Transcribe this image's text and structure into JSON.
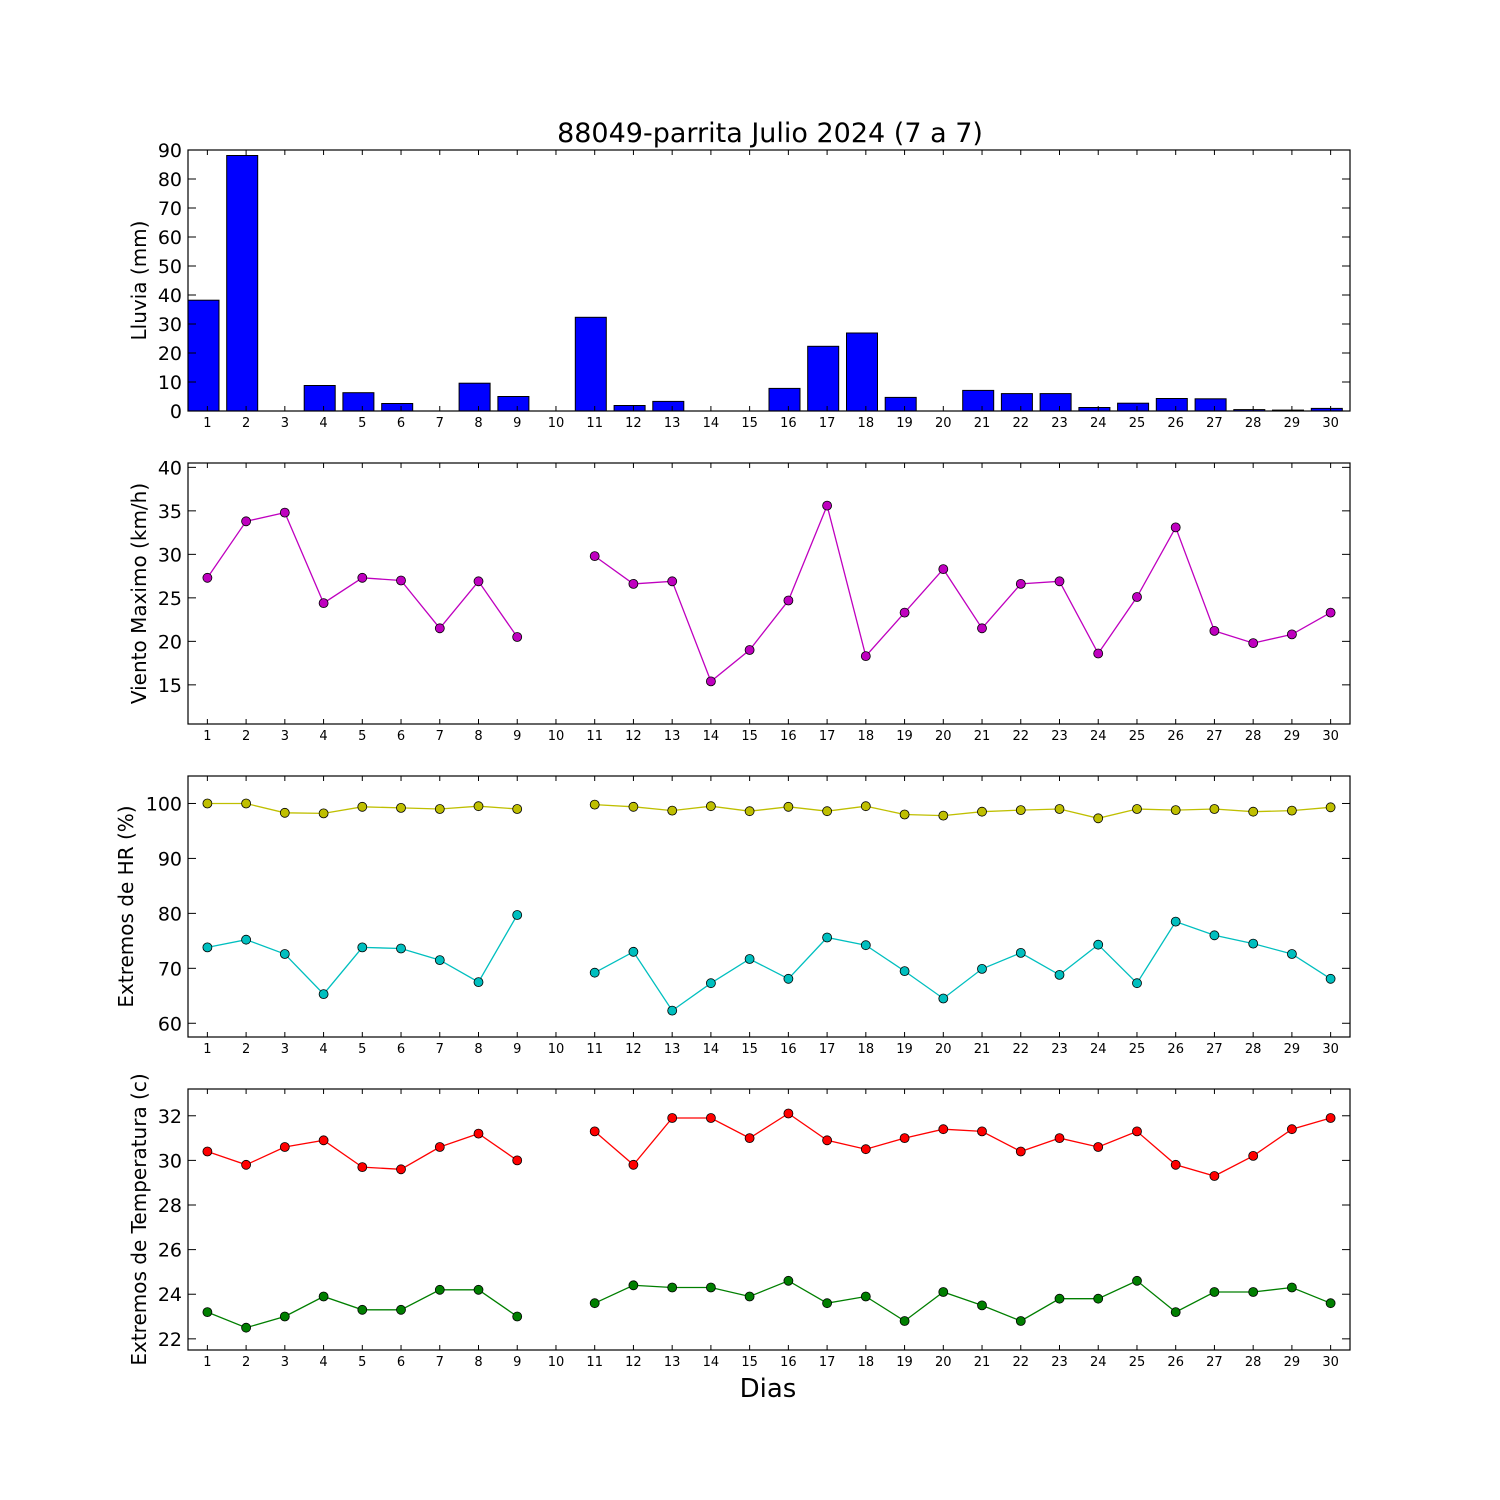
{
  "title": "88049-parrita Julio 2024  (7 a 7)",
  "xlabel": "Dias",
  "chart_data": [
    {
      "type": "bar",
      "ylabel": "Lluvia (mm)",
      "ylim": [
        0,
        90
      ],
      "yticks": [
        0,
        10,
        20,
        30,
        40,
        50,
        60,
        70,
        80,
        90
      ],
      "x": [
        1,
        2,
        3,
        4,
        5,
        6,
        7,
        8,
        9,
        10,
        11,
        12,
        13,
        14,
        15,
        16,
        17,
        18,
        19,
        20,
        21,
        22,
        23,
        24,
        25,
        26,
        27,
        28,
        29,
        30
      ],
      "series": [
        {
          "color": "#0000ff",
          "values": [
            38.2,
            88.1,
            0,
            8.8,
            6.3,
            2.6,
            0,
            9.6,
            5.0,
            null,
            32.3,
            1.9,
            3.3,
            0,
            0,
            7.8,
            22.3,
            26.9,
            4.7,
            0,
            7.1,
            6.0,
            6.0,
            1.2,
            2.7,
            4.3,
            4.2,
            0.5,
            0.3,
            0.9
          ]
        }
      ]
    },
    {
      "type": "line",
      "ylabel": "Viento Maximo (km/h)",
      "ylim": [
        10.5,
        40.5
      ],
      "yticks": [
        15,
        20,
        25,
        30,
        35,
        40
      ],
      "x": [
        1,
        2,
        3,
        4,
        5,
        6,
        7,
        8,
        9,
        10,
        11,
        12,
        13,
        14,
        15,
        16,
        17,
        18,
        19,
        20,
        21,
        22,
        23,
        24,
        25,
        26,
        27,
        28,
        29,
        30
      ],
      "series": [
        {
          "color": "#bf00bf",
          "values": [
            27.3,
            33.8,
            34.8,
            24.4,
            27.3,
            27.0,
            21.5,
            26.9,
            20.5,
            null,
            29.8,
            26.6,
            26.9,
            15.4,
            19.0,
            24.7,
            35.6,
            18.3,
            23.3,
            28.3,
            21.5,
            26.6,
            26.9,
            18.6,
            25.1,
            33.1,
            21.2,
            19.8,
            20.8,
            23.3
          ]
        }
      ]
    },
    {
      "type": "line",
      "ylabel": "Extremos de HR (%)",
      "ylim": [
        57.5,
        105
      ],
      "yticks": [
        60,
        70,
        80,
        90,
        100
      ],
      "x": [
        1,
        2,
        3,
        4,
        5,
        6,
        7,
        8,
        9,
        10,
        11,
        12,
        13,
        14,
        15,
        16,
        17,
        18,
        19,
        20,
        21,
        22,
        23,
        24,
        25,
        26,
        27,
        28,
        29,
        30
      ],
      "series": [
        {
          "color": "#bfbf00",
          "values": [
            100,
            100,
            98.3,
            98.2,
            99.4,
            99.2,
            99.0,
            99.5,
            99.0,
            null,
            99.8,
            99.4,
            98.7,
            99.5,
            98.6,
            99.4,
            98.6,
            99.5,
            98.0,
            97.8,
            98.5,
            98.8,
            99.0,
            97.3,
            99.0,
            98.8,
            99.0,
            98.5,
            98.7,
            99.3
          ]
        },
        {
          "color": "#00bfbf",
          "values": [
            73.8,
            75.2,
            72.6,
            65.3,
            73.8,
            73.6,
            71.5,
            67.5,
            79.7,
            null,
            69.2,
            73.0,
            62.3,
            67.3,
            71.7,
            68.1,
            75.6,
            74.2,
            69.5,
            64.5,
            69.9,
            72.8,
            68.8,
            74.3,
            67.3,
            78.5,
            76.0,
            74.5,
            72.6,
            68.1
          ]
        }
      ]
    },
    {
      "type": "line",
      "ylabel": "Extremos de Temperatura (c)",
      "ylim": [
        21.5,
        33.2
      ],
      "yticks": [
        22,
        24,
        26,
        28,
        30,
        32
      ],
      "x": [
        1,
        2,
        3,
        4,
        5,
        6,
        7,
        8,
        9,
        10,
        11,
        12,
        13,
        14,
        15,
        16,
        17,
        18,
        19,
        20,
        21,
        22,
        23,
        24,
        25,
        26,
        27,
        28,
        29,
        30
      ],
      "series": [
        {
          "color": "#ff0000",
          "values": [
            30.4,
            29.8,
            30.6,
            30.9,
            29.7,
            29.6,
            30.6,
            31.2,
            30.0,
            null,
            31.3,
            29.8,
            31.9,
            31.9,
            31.0,
            32.1,
            30.9,
            30.5,
            31.0,
            31.4,
            31.3,
            30.4,
            31.0,
            30.6,
            31.3,
            29.8,
            29.3,
            30.2,
            31.4,
            31.9
          ]
        },
        {
          "color": "#007f00",
          "values": [
            23.2,
            22.5,
            23.0,
            23.9,
            23.3,
            23.3,
            24.2,
            24.2,
            23.0,
            null,
            23.6,
            24.4,
            24.3,
            24.3,
            23.9,
            24.6,
            23.6,
            23.9,
            22.8,
            24.1,
            23.5,
            22.8,
            23.8,
            23.8,
            24.6,
            23.2,
            24.1,
            24.1,
            24.3,
            23.6
          ]
        }
      ]
    }
  ]
}
